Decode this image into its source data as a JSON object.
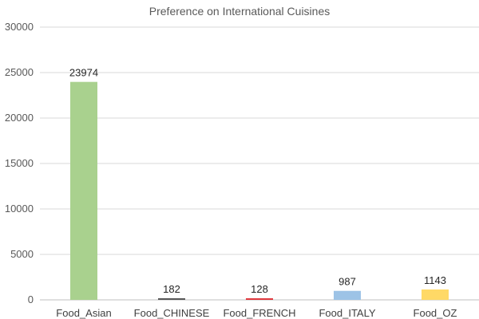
{
  "chart_data": {
    "type": "bar",
    "title": "Preference on International Cuisines",
    "xlabel": "",
    "ylabel": "",
    "categories": [
      "Food_Asian",
      "Food_CHINESE",
      "Food_FRENCH",
      "Food_ITALY",
      "Food_OZ"
    ],
    "values": [
      23974,
      182,
      128,
      987,
      1143
    ],
    "colors": [
      "#a9d18e",
      "#595959",
      "#e0393e",
      "#9dc3e6",
      "#ffd966"
    ],
    "ylim": [
      0,
      30000
    ],
    "yticks": [
      0,
      5000,
      10000,
      15000,
      20000,
      25000,
      30000
    ],
    "grid": true,
    "legend": "none"
  }
}
